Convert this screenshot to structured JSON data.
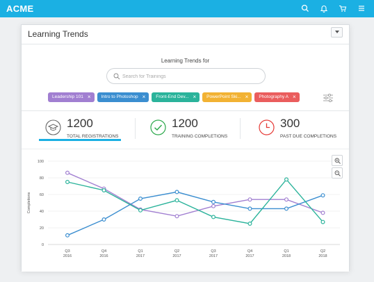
{
  "app": {
    "brand": "ACME"
  },
  "topbar": {
    "icons": [
      "search-icon",
      "bell-icon",
      "cart-icon",
      "menu-icon"
    ]
  },
  "panel": {
    "title": "Learning Trends"
  },
  "filters": {
    "title": "Learning Trends for",
    "search_placeholder": "Search for Trainings",
    "tags": [
      {
        "label": "Leadership 101",
        "color": "#a17fd1"
      },
      {
        "label": "Intro to Photoshop",
        "color": "#3b8ed0"
      },
      {
        "label": "Front-End Dev...",
        "color": "#2bb39b"
      },
      {
        "label": "PowerPoint Ski...",
        "color": "#f2b233"
      },
      {
        "label": "Photography A",
        "color": "#ea5d5d"
      }
    ]
  },
  "stats": [
    {
      "value": "1200",
      "label": "TOTAL REGISTRATIONS",
      "icon": "graduation-cap-icon",
      "color": "#666666"
    },
    {
      "value": "1200",
      "label": "TRAINING COMPLETIONS",
      "icon": "check-circle-icon",
      "color": "#2aa84a"
    },
    {
      "value": "300",
      "label": "PAST DUE COMPLETIONS",
      "icon": "clock-icon",
      "color": "#e53935"
    }
  ],
  "colors": {
    "accent": "#1bb0e3"
  },
  "chart_data": {
    "type": "line",
    "ylabel": "Completions",
    "xlabel": "",
    "ylim": [
      0,
      100
    ],
    "yticks": [
      0,
      20,
      40,
      60,
      80,
      100
    ],
    "grid": true,
    "categories": [
      [
        "Q3",
        "2016"
      ],
      [
        "Q4",
        "2016"
      ],
      [
        "Q1",
        "2017"
      ],
      [
        "Q2",
        "2017"
      ],
      [
        "Q3",
        "2017"
      ],
      [
        "Q4",
        "2017"
      ],
      [
        "Q1",
        "2018"
      ],
      [
        "Q2",
        "2018"
      ]
    ],
    "series": [
      {
        "color": "#a17fd1",
        "values": [
          86,
          67,
          42,
          34,
          46,
          54,
          54,
          38
        ]
      },
      {
        "color": "#3b8ed0",
        "values": [
          11,
          30,
          55,
          63,
          51,
          43,
          43,
          59
        ]
      },
      {
        "color": "#2bb39b",
        "values": [
          75,
          65,
          41,
          53,
          33,
          25,
          78,
          27
        ]
      }
    ]
  }
}
